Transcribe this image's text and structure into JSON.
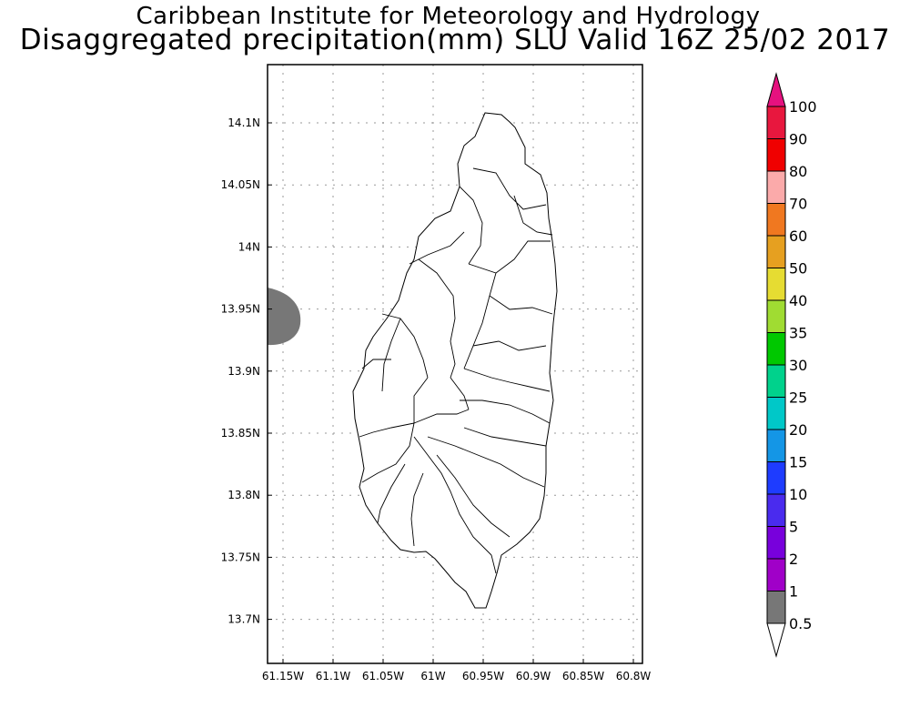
{
  "title": "Caribbean Institute for Meteorology and Hydrology",
  "subtitle": "Disaggregated precipitation(mm) SLU Valid 16Z 25/02 2017",
  "map": {
    "lat_ticks": [
      "14.1N",
      "14.05N",
      "14N",
      "13.95N",
      "13.9N",
      "13.85N",
      "13.8N",
      "13.75N",
      "13.7N"
    ],
    "lon_ticks": [
      "61.15W",
      "61.1W",
      "61.05W",
      "61W",
      "60.95W",
      "60.9W",
      "60.85W",
      "60.8W"
    ],
    "lat_values": [
      14.1,
      14.05,
      14.0,
      13.95,
      13.9,
      13.85,
      13.8,
      13.75,
      13.7
    ],
    "lon_values": [
      -61.15,
      -61.1,
      -61.05,
      -61.0,
      -60.95,
      -60.9,
      -60.85,
      -60.8
    ],
    "precip_area_color": "#777777",
    "grid_color": "#999999"
  },
  "colorbar": {
    "labels": [
      "100",
      "90",
      "80",
      "70",
      "60",
      "50",
      "40",
      "35",
      "30",
      "25",
      "20",
      "15",
      "10",
      "5",
      "2",
      "1",
      "0.5"
    ],
    "colors": [
      "#e8173e",
      "#f00000",
      "#fbaaaa",
      "#f07820",
      "#e6a020",
      "#e6dc32",
      "#a0dc32",
      "#00c800",
      "#00d28c",
      "#00c8c8",
      "#1496e6",
      "#1e3cff",
      "#4a2bee",
      "#7800dc",
      "#a000c8",
      "#777777"
    ],
    "top_triangle_color": "#e6117f",
    "bottom_triangle_color": "#ffffff"
  }
}
